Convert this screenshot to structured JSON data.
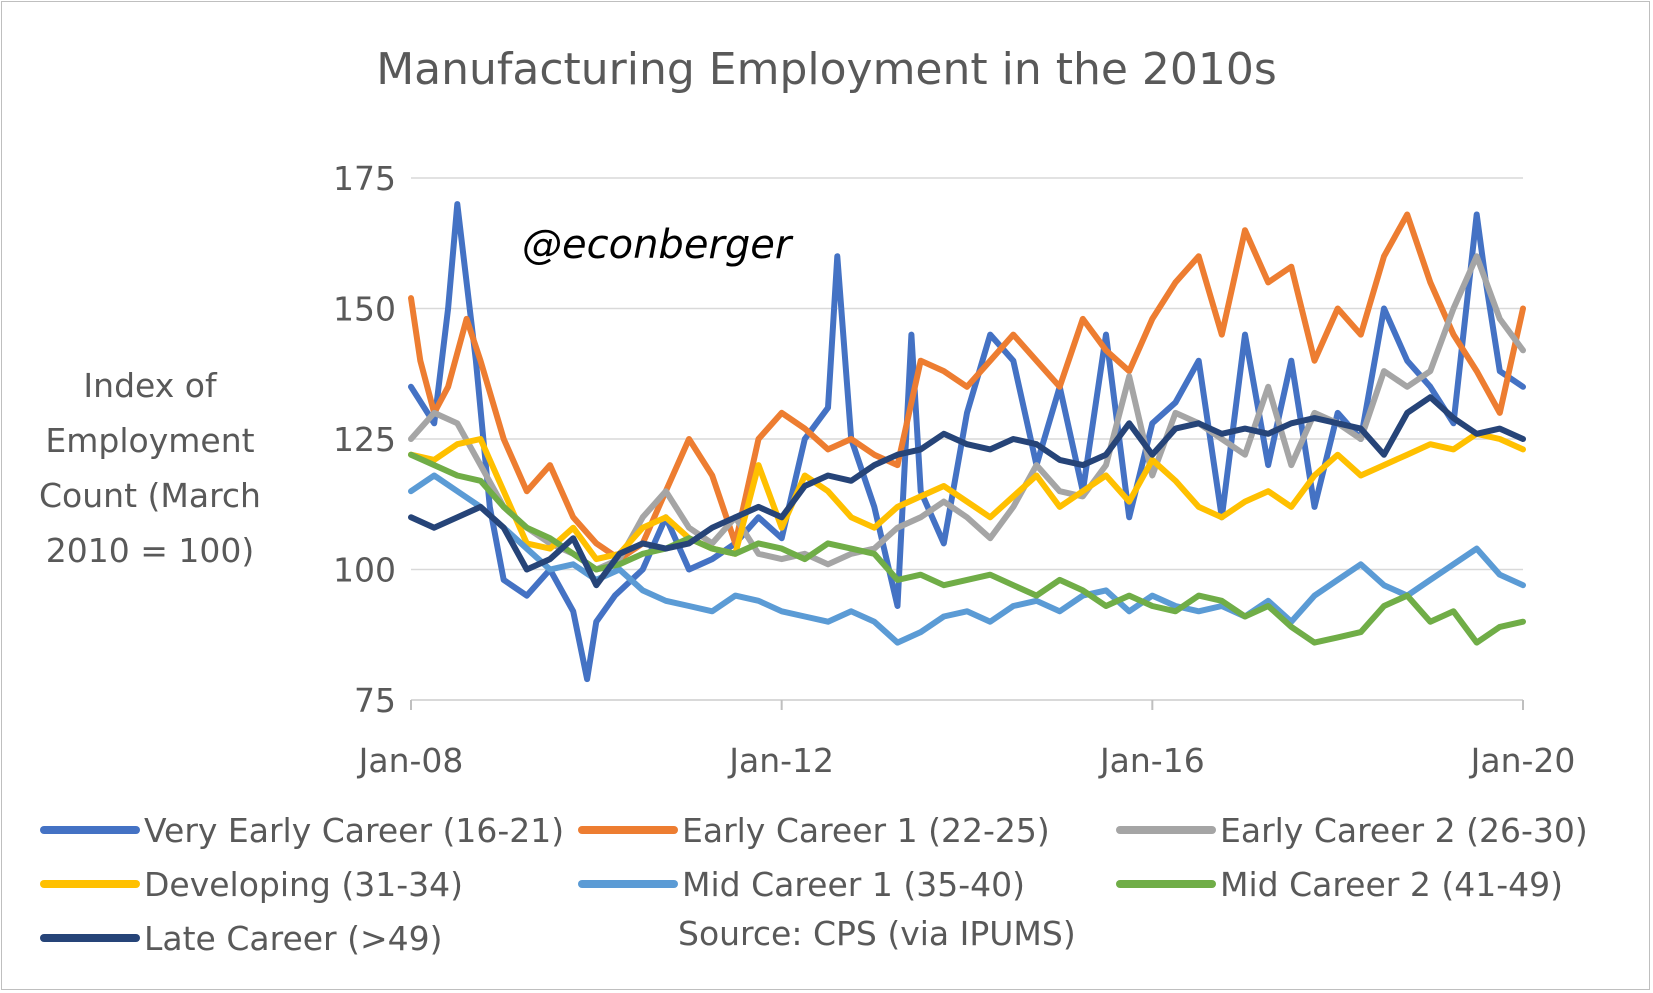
{
  "chart_data": {
    "type": "line",
    "title": "Manufacturing Employment in the 2010s",
    "ylabel": "Index of Employment Count (March 2010 = 100)",
    "xlabel": "",
    "ylim": [
      75,
      175
    ],
    "yticks": [
      75,
      100,
      125,
      150,
      175
    ],
    "xlim": [
      2008.0,
      2020.0
    ],
    "xticks": [
      {
        "value": 2008.0,
        "label": "Jan-08"
      },
      {
        "value": 2012.0,
        "label": "Jan-12"
      },
      {
        "value": 2016.0,
        "label": "Jan-16"
      },
      {
        "value": 2020.0,
        "label": "Jan-20"
      }
    ],
    "grid": "horizontal",
    "legend_position": "bottom",
    "annotation": "@econberger",
    "source": "Source: CPS (via IPUMS)",
    "series": [
      {
        "name": "Very Early Career (16-21)",
        "color": "#4472C4",
        "x": [
          2008.0,
          2008.25,
          2008.4,
          2008.5,
          2008.7,
          2008.85,
          2009.0,
          2009.25,
          2009.5,
          2009.75,
          2009.9,
          2010.0,
          2010.2,
          2010.5,
          2010.75,
          2011.0,
          2011.25,
          2011.5,
          2011.75,
          2012.0,
          2012.25,
          2012.5,
          2012.6,
          2012.75,
          2013.0,
          2013.25,
          2013.4,
          2013.5,
          2013.75,
          2014.0,
          2014.25,
          2014.5,
          2014.75,
          2015.0,
          2015.25,
          2015.5,
          2015.75,
          2016.0,
          2016.25,
          2016.5,
          2016.75,
          2017.0,
          2017.25,
          2017.5,
          2017.75,
          2018.0,
          2018.25,
          2018.5,
          2018.75,
          2019.0,
          2019.25,
          2019.5,
          2019.6,
          2019.75,
          2020.0
        ],
        "values": [
          135,
          128,
          150,
          170,
          140,
          112,
          98,
          95,
          100,
          92,
          79,
          90,
          95,
          100,
          110,
          100,
          102,
          105,
          110,
          106,
          125,
          131,
          160,
          125,
          112,
          93,
          145,
          115,
          105,
          130,
          145,
          140,
          120,
          135,
          115,
          145,
          110,
          128,
          132,
          140,
          110,
          145,
          120,
          140,
          112,
          130,
          125,
          150,
          140,
          135,
          128,
          168,
          155,
          138,
          135
        ]
      },
      {
        "name": "Early Career 1 (22-25)",
        "color": "#ED7D31",
        "x": [
          2008.0,
          2008.1,
          2008.25,
          2008.4,
          2008.6,
          2008.75,
          2009.0,
          2009.25,
          2009.5,
          2009.75,
          2010.0,
          2010.25,
          2010.5,
          2010.75,
          2011.0,
          2011.25,
          2011.5,
          2011.75,
          2012.0,
          2012.25,
          2012.5,
          2012.75,
          2013.0,
          2013.25,
          2013.5,
          2013.75,
          2014.0,
          2014.25,
          2014.5,
          2014.75,
          2015.0,
          2015.25,
          2015.5,
          2015.75,
          2016.0,
          2016.25,
          2016.5,
          2016.75,
          2017.0,
          2017.25,
          2017.5,
          2017.75,
          2018.0,
          2018.25,
          2018.5,
          2018.75,
          2019.0,
          2019.25,
          2019.5,
          2019.75,
          2020.0
        ],
        "values": [
          152,
          140,
          130,
          135,
          148,
          140,
          125,
          115,
          120,
          110,
          105,
          102,
          105,
          115,
          125,
          118,
          105,
          125,
          130,
          127,
          123,
          125,
          122,
          120,
          140,
          138,
          135,
          140,
          145,
          140,
          135,
          148,
          142,
          138,
          148,
          155,
          160,
          145,
          165,
          155,
          158,
          140,
          150,
          145,
          160,
          168,
          155,
          145,
          138,
          130,
          150
        ]
      },
      {
        "name": "Early Career 2 (26-30)",
        "color": "#A5A5A5",
        "x": [
          2008.0,
          2008.25,
          2008.5,
          2008.75,
          2009.0,
          2009.25,
          2009.5,
          2009.75,
          2010.0,
          2010.25,
          2010.5,
          2010.75,
          2011.0,
          2011.25,
          2011.5,
          2011.75,
          2012.0,
          2012.25,
          2012.5,
          2012.75,
          2013.0,
          2013.25,
          2013.5,
          2013.75,
          2014.0,
          2014.25,
          2014.5,
          2014.75,
          2015.0,
          2015.25,
          2015.5,
          2015.75,
          2016.0,
          2016.25,
          2016.5,
          2016.75,
          2017.0,
          2017.25,
          2017.5,
          2017.75,
          2018.0,
          2018.25,
          2018.5,
          2018.75,
          2019.0,
          2019.25,
          2019.5,
          2019.75,
          2020.0
        ],
        "values": [
          125,
          130,
          128,
          120,
          112,
          108,
          105,
          103,
          100,
          102,
          110,
          115,
          108,
          105,
          110,
          103,
          102,
          103,
          101,
          103,
          104,
          108,
          110,
          113,
          110,
          106,
          112,
          120,
          115,
          114,
          120,
          137,
          118,
          130,
          128,
          125,
          122,
          135,
          120,
          130,
          128,
          125,
          138,
          135,
          138,
          150,
          160,
          148,
          142
        ]
      },
      {
        "name": "Developing (31-34)",
        "color": "#FFC000",
        "x": [
          2008.0,
          2008.25,
          2008.5,
          2008.75,
          2009.0,
          2009.25,
          2009.5,
          2009.75,
          2010.0,
          2010.25,
          2010.5,
          2010.75,
          2011.0,
          2011.25,
          2011.5,
          2011.75,
          2012.0,
          2012.25,
          2012.5,
          2012.75,
          2013.0,
          2013.25,
          2013.5,
          2013.75,
          2014.0,
          2014.25,
          2014.5,
          2014.75,
          2015.0,
          2015.25,
          2015.5,
          2015.75,
          2016.0,
          2016.25,
          2016.5,
          2016.75,
          2017.0,
          2017.25,
          2017.5,
          2017.75,
          2018.0,
          2018.25,
          2018.5,
          2018.75,
          2019.0,
          2019.25,
          2019.5,
          2019.75,
          2020.0
        ],
        "values": [
          122,
          121,
          124,
          125,
          115,
          105,
          104,
          108,
          102,
          103,
          108,
          110,
          106,
          104,
          103,
          120,
          108,
          118,
          115,
          110,
          108,
          112,
          114,
          116,
          113,
          110,
          114,
          118,
          112,
          115,
          118,
          113,
          121,
          117,
          112,
          110,
          113,
          115,
          112,
          118,
          122,
          118,
          120,
          122,
          124,
          123,
          126,
          125,
          123
        ]
      },
      {
        "name": "Mid Career 1 (35-40)",
        "color": "#5B9BD5",
        "x": [
          2008.0,
          2008.25,
          2008.5,
          2008.75,
          2009.0,
          2009.25,
          2009.5,
          2009.75,
          2010.0,
          2010.25,
          2010.5,
          2010.75,
          2011.0,
          2011.25,
          2011.5,
          2011.75,
          2012.0,
          2012.25,
          2012.5,
          2012.75,
          2013.0,
          2013.25,
          2013.5,
          2013.75,
          2014.0,
          2014.25,
          2014.5,
          2014.75,
          2015.0,
          2015.25,
          2015.5,
          2015.75,
          2016.0,
          2016.25,
          2016.5,
          2016.75,
          2017.0,
          2017.25,
          2017.5,
          2017.75,
          2018.0,
          2018.25,
          2018.5,
          2018.75,
          2019.0,
          2019.25,
          2019.5,
          2019.75,
          2020.0
        ],
        "values": [
          115,
          118,
          115,
          112,
          108,
          104,
          100,
          101,
          98,
          100,
          96,
          94,
          93,
          92,
          95,
          94,
          92,
          91,
          90,
          92,
          90,
          86,
          88,
          91,
          92,
          90,
          93,
          94,
          92,
          95,
          96,
          92,
          95,
          93,
          92,
          93,
          91,
          94,
          90,
          95,
          98,
          101,
          97,
          95,
          98,
          101,
          104,
          99,
          97
        ]
      },
      {
        "name": "Mid Career 2 (41-49)",
        "color": "#70AD47",
        "x": [
          2008.0,
          2008.25,
          2008.5,
          2008.75,
          2009.0,
          2009.25,
          2009.5,
          2009.75,
          2010.0,
          2010.25,
          2010.5,
          2010.75,
          2011.0,
          2011.25,
          2011.5,
          2011.75,
          2012.0,
          2012.25,
          2012.5,
          2012.75,
          2013.0,
          2013.25,
          2013.5,
          2013.75,
          2014.0,
          2014.25,
          2014.5,
          2014.75,
          2015.0,
          2015.25,
          2015.5,
          2015.75,
          2016.0,
          2016.25,
          2016.5,
          2016.75,
          2017.0,
          2017.25,
          2017.5,
          2017.75,
          2018.0,
          2018.25,
          2018.5,
          2018.75,
          2019.0,
          2019.25,
          2019.5,
          2019.75,
          2020.0
        ],
        "values": [
          122,
          120,
          118,
          117,
          112,
          108,
          106,
          103,
          100,
          101,
          103,
          104,
          106,
          104,
          103,
          105,
          104,
          102,
          105,
          104,
          103,
          98,
          99,
          97,
          98,
          99,
          97,
          95,
          98,
          96,
          93,
          95,
          93,
          92,
          95,
          94,
          91,
          93,
          89,
          86,
          87,
          88,
          93,
          95,
          90,
          92,
          86,
          89,
          90
        ]
      },
      {
        "name": "Late Career (>49)",
        "color": "#264478",
        "x": [
          2008.0,
          2008.25,
          2008.5,
          2008.75,
          2009.0,
          2009.25,
          2009.5,
          2009.75,
          2010.0,
          2010.25,
          2010.5,
          2010.75,
          2011.0,
          2011.25,
          2011.5,
          2011.75,
          2012.0,
          2012.25,
          2012.5,
          2012.75,
          2013.0,
          2013.25,
          2013.5,
          2013.75,
          2014.0,
          2014.25,
          2014.5,
          2014.75,
          2015.0,
          2015.25,
          2015.5,
          2015.75,
          2016.0,
          2016.25,
          2016.5,
          2016.75,
          2017.0,
          2017.25,
          2017.5,
          2017.75,
          2018.0,
          2018.25,
          2018.5,
          2018.75,
          2019.0,
          2019.25,
          2019.5,
          2019.75,
          2020.0
        ],
        "values": [
          110,
          108,
          110,
          112,
          108,
          100,
          102,
          106,
          97,
          103,
          105,
          104,
          105,
          108,
          110,
          112,
          110,
          116,
          118,
          117,
          120,
          122,
          123,
          126,
          124,
          123,
          125,
          124,
          121,
          120,
          122,
          128,
          122,
          127,
          128,
          126,
          127,
          126,
          128,
          129,
          128,
          127,
          122,
          130,
          133,
          129,
          126,
          127,
          125
        ]
      }
    ]
  }
}
